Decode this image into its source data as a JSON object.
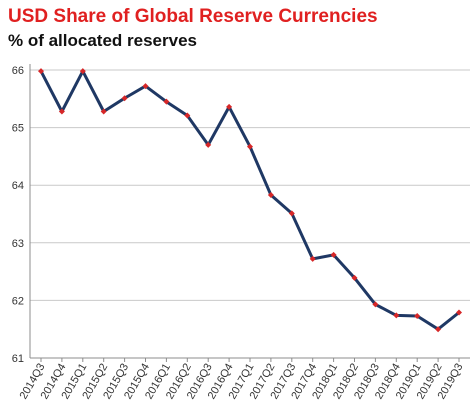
{
  "chart_data": {
    "type": "line",
    "title": "USD Share of Global  Reserve Currencies",
    "subtitle": "% of allocated reserves",
    "xlabel": "",
    "ylabel": "",
    "categories": [
      "2014Q3",
      "2014Q4",
      "2015Q1",
      "2015Q2",
      "2015Q3",
      "2015Q4",
      "2016Q1",
      "2016Q2",
      "2016Q3",
      "2016Q4",
      "2017Q1",
      "2017Q2",
      "2017Q3",
      "2017Q4",
      "2018Q1",
      "2018Q2",
      "2018Q3",
      "2018Q4",
      "2019Q1",
      "2019Q2",
      "2019Q3"
    ],
    "series": [
      {
        "values": [
          65.98,
          65.28,
          65.98,
          65.28,
          65.51,
          65.72,
          65.45,
          65.21,
          64.7,
          65.36,
          64.67,
          63.83,
          63.51,
          62.72,
          62.79,
          62.39,
          61.93,
          61.74,
          61.73,
          61.5,
          61.79
        ]
      }
    ],
    "ylim": [
      61,
      66
    ],
    "yticks": [
      61,
      62,
      63,
      64,
      65,
      66
    ],
    "grid": true,
    "legend": "none",
    "line_color": "#1f3864",
    "marker_color": "#d62728"
  }
}
